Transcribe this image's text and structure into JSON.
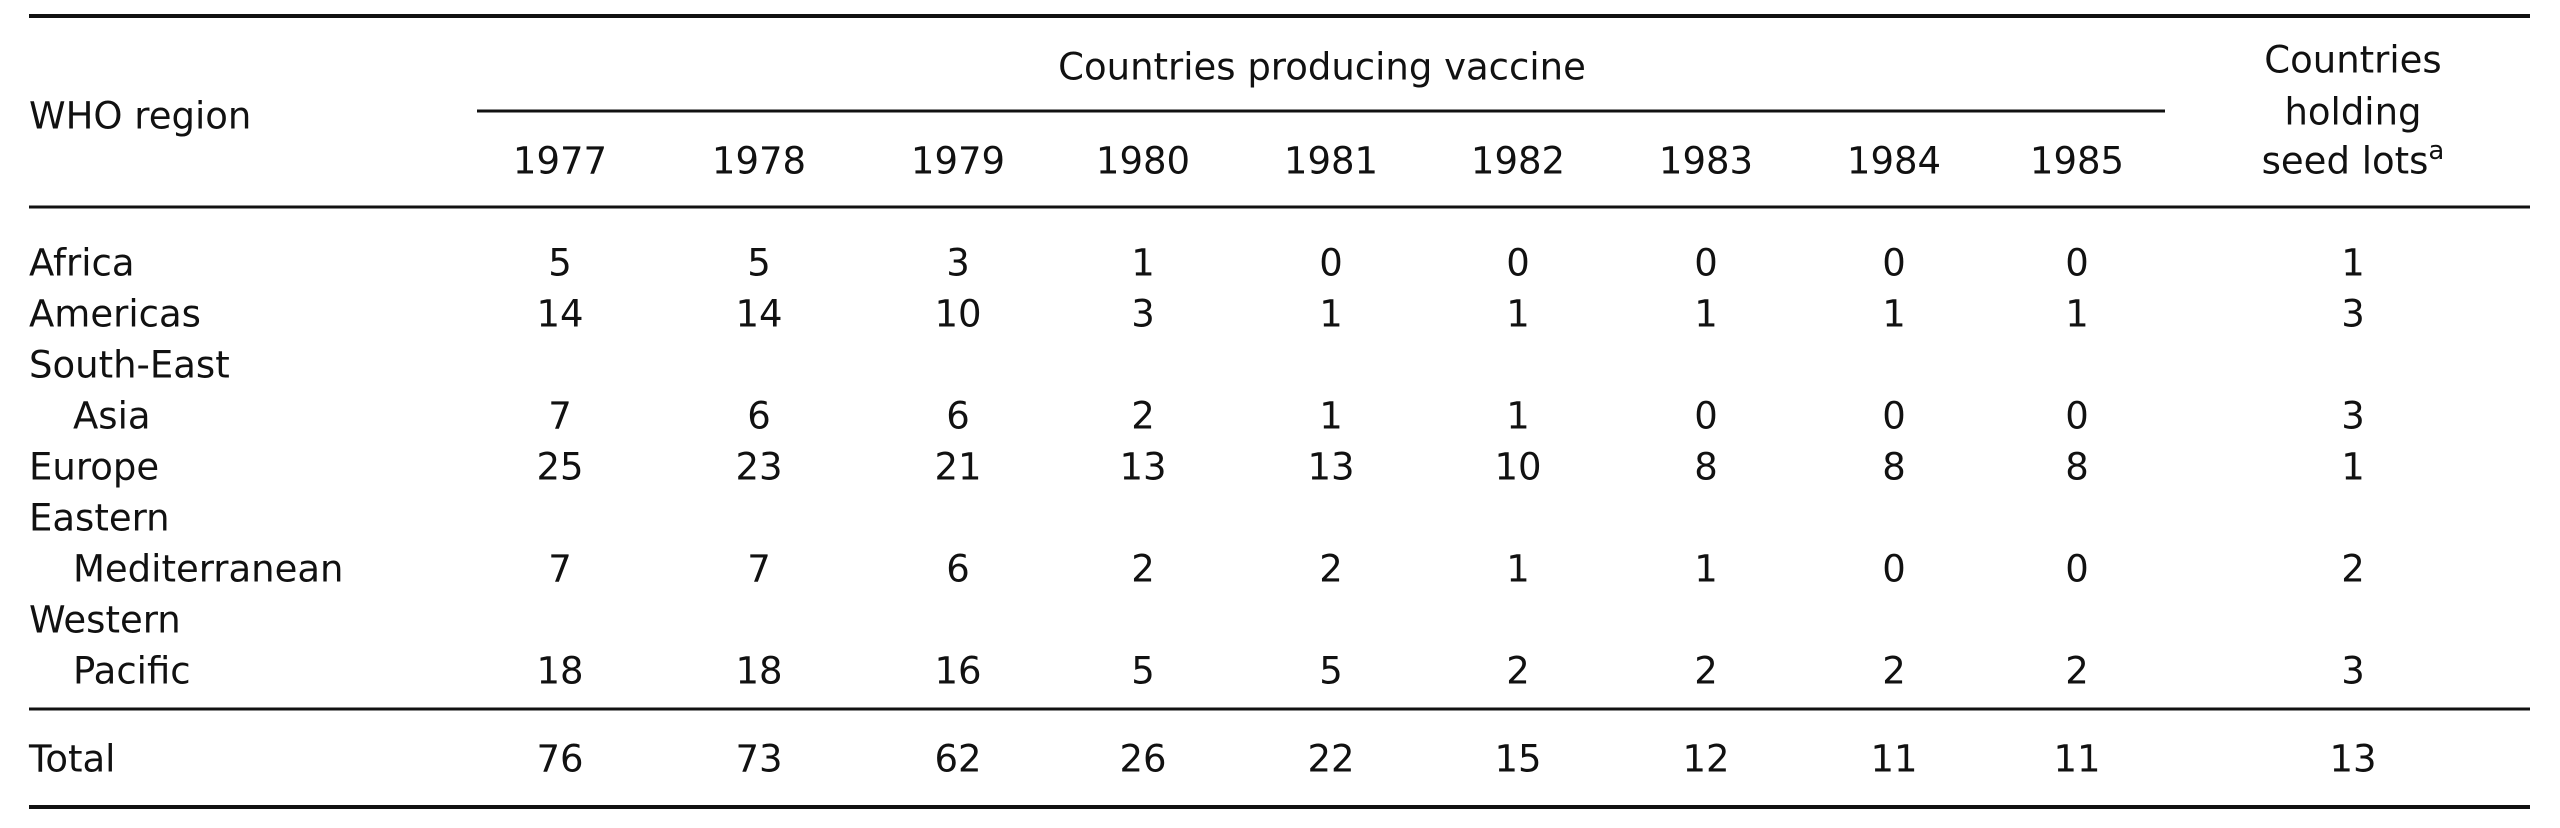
{
  "table": {
    "region_header": "WHO region",
    "group_header": "Countries producing vaccine",
    "years": [
      "1977",
      "1978",
      "1979",
      "1980",
      "1981",
      "1982",
      "1983",
      "1984",
      "1985"
    ],
    "seed_header": [
      "Countries",
      "holding",
      "seed lots"
    ],
    "footnote_marker": "a",
    "rows": [
      {
        "region": [
          "Africa"
        ],
        "values": [
          5,
          5,
          3,
          1,
          0,
          0,
          0,
          0,
          0
        ],
        "seed_lots": 1
      },
      {
        "region": [
          "Americas"
        ],
        "values": [
          14,
          14,
          10,
          3,
          1,
          1,
          1,
          1,
          1
        ],
        "seed_lots": 3
      },
      {
        "region": [
          "South-East",
          "Asia"
        ],
        "values": [
          7,
          6,
          6,
          2,
          1,
          1,
          0,
          0,
          0
        ],
        "seed_lots": 3
      },
      {
        "region": [
          "Europe"
        ],
        "values": [
          25,
          23,
          21,
          13,
          13,
          10,
          8,
          8,
          8
        ],
        "seed_lots": 1
      },
      {
        "region": [
          "Eastern",
          "Mediterranean"
        ],
        "values": [
          7,
          7,
          6,
          2,
          2,
          1,
          1,
          0,
          0
        ],
        "seed_lots": 2
      },
      {
        "region": [
          "Western",
          "Pacific"
        ],
        "values": [
          18,
          18,
          16,
          5,
          5,
          2,
          2,
          2,
          2
        ],
        "seed_lots": 3
      }
    ],
    "total": {
      "label": "Total",
      "values": [
        76,
        73,
        62,
        26,
        22,
        15,
        12,
        11,
        11
      ],
      "seed_lots": 13
    }
  }
}
